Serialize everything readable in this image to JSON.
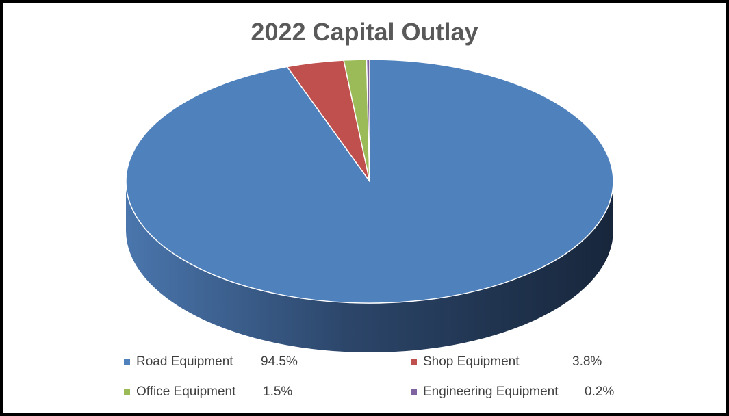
{
  "chart_data": {
    "type": "pie",
    "title": "2022 Capital Outlay",
    "three_d": true,
    "legend_position": "bottom",
    "slices": [
      {
        "label": "Road Equipment",
        "value": 94.5,
        "value_label": "94.5%",
        "color": "#4F81BD"
      },
      {
        "label": "Shop Equipment",
        "value": 3.8,
        "value_label": "3.8%",
        "color": "#C0504D"
      },
      {
        "label": "Office Equipment",
        "value": 1.5,
        "value_label": "1.5%",
        "color": "#9BBB59"
      },
      {
        "label": "Engineering Equipment",
        "value": 0.2,
        "value_label": "0.2%",
        "color": "#8064A2"
      }
    ]
  }
}
